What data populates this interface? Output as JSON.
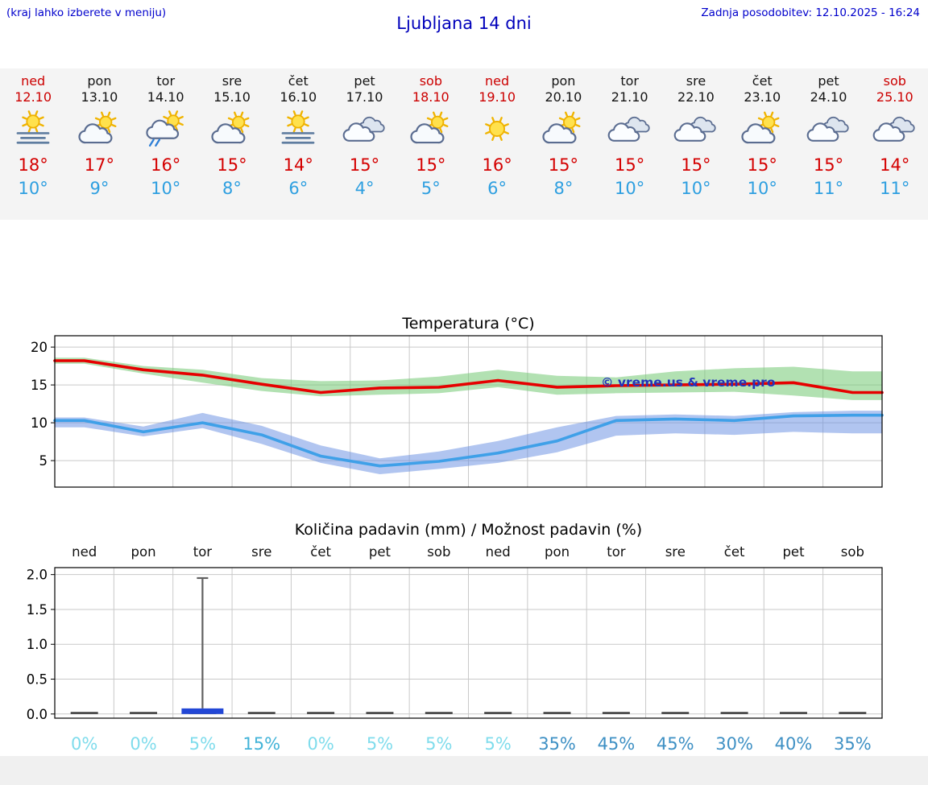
{
  "header": {
    "hint": "(kraj lahko izberete v meniju)",
    "title": "Ljubljana 14 dni",
    "updated": "Zadnja posodobitev: 12.10.2025 - 16:24"
  },
  "colors": {
    "header_text": "#0000cc",
    "title": "#0000bb",
    "high_temp": "#d40000",
    "low_temp": "#2e9fe0",
    "weekend": "#cc0000",
    "strip_background": "#f4f4f4"
  },
  "forecast": {
    "days": [
      {
        "name": "ned",
        "date": "12.10",
        "weekend": true,
        "icon": "sun-fog",
        "high": "18°",
        "low": "10°"
      },
      {
        "name": "pon",
        "date": "13.10",
        "weekend": false,
        "icon": "partly-cloudy",
        "high": "17°",
        "low": "9°"
      },
      {
        "name": "tor",
        "date": "14.10",
        "weekend": false,
        "icon": "partly-cloudy-rain",
        "high": "16°",
        "low": "10°"
      },
      {
        "name": "sre",
        "date": "15.10",
        "weekend": false,
        "icon": "partly-cloudy",
        "high": "15°",
        "low": "8°"
      },
      {
        "name": "čet",
        "date": "16.10",
        "weekend": false,
        "icon": "sun-fog",
        "high": "14°",
        "low": "6°"
      },
      {
        "name": "pet",
        "date": "17.10",
        "weekend": false,
        "icon": "cloudy",
        "high": "15°",
        "low": "4°"
      },
      {
        "name": "sob",
        "date": "18.10",
        "weekend": true,
        "icon": "partly-cloudy",
        "high": "15°",
        "low": "5°"
      },
      {
        "name": "ned",
        "date": "19.10",
        "weekend": true,
        "icon": "sunny",
        "high": "16°",
        "low": "6°"
      },
      {
        "name": "pon",
        "date": "20.10",
        "weekend": false,
        "icon": "partly-cloudy",
        "high": "15°",
        "low": "8°"
      },
      {
        "name": "tor",
        "date": "21.10",
        "weekend": false,
        "icon": "cloudy",
        "high": "15°",
        "low": "10°"
      },
      {
        "name": "sre",
        "date": "22.10",
        "weekend": false,
        "icon": "cloudy",
        "high": "15°",
        "low": "10°"
      },
      {
        "name": "čet",
        "date": "23.10",
        "weekend": false,
        "icon": "partly-cloudy",
        "high": "15°",
        "low": "10°"
      },
      {
        "name": "pet",
        "date": "24.10",
        "weekend": false,
        "icon": "cloudy",
        "high": "15°",
        "low": "11°"
      },
      {
        "name": "sob",
        "date": "25.10",
        "weekend": true,
        "icon": "cloudy",
        "high": "14°",
        "low": "11°"
      }
    ]
  },
  "chart_data": [
    {
      "type": "line",
      "title": "Temperatura (°C)",
      "x_labels": [
        "ned",
        "pon",
        "tor",
        "sre",
        "čet",
        "pet",
        "sob",
        "ned",
        "pon",
        "tor",
        "sre",
        "čet",
        "pet",
        "sob"
      ],
      "ylim": [
        1.5,
        21.5
      ],
      "yticks": [
        5,
        10,
        15,
        20
      ],
      "grid": true,
      "legend": "none",
      "watermark": "© vreme.us & vreme.pro",
      "series": [
        {
          "name": "max-temp",
          "color": "#e60000",
          "values": [
            18.2,
            17.0,
            16.3,
            15.1,
            14.0,
            14.6,
            14.7,
            15.6,
            14.7,
            14.9,
            15.0,
            15.1,
            15.3,
            14.0
          ]
        },
        {
          "name": "min-temp",
          "color": "#3fa0e8",
          "values": [
            10.3,
            8.8,
            10.0,
            8.4,
            5.6,
            4.3,
            4.9,
            6.0,
            7.6,
            10.3,
            10.5,
            10.3,
            10.9,
            11.0
          ]
        }
      ],
      "bands": [
        {
          "name": "max-temp-range",
          "color": "rgba(115,200,115,0.55)",
          "upper": [
            18.6,
            17.5,
            17.0,
            15.9,
            15.5,
            15.6,
            16.1,
            17.0,
            16.2,
            16.0,
            16.8,
            17.2,
            17.4,
            16.8
          ],
          "lower": [
            17.8,
            16.5,
            15.3,
            14.2,
            13.5,
            13.7,
            13.9,
            14.7,
            13.7,
            13.9,
            14.0,
            14.1,
            13.6,
            13.0
          ]
        },
        {
          "name": "min-temp-range",
          "color": "rgba(100,140,225,0.5)",
          "upper": [
            10.7,
            9.5,
            11.3,
            9.6,
            7.0,
            5.3,
            6.2,
            7.6,
            9.4,
            10.9,
            11.1,
            10.9,
            11.4,
            11.6
          ],
          "lower": [
            9.4,
            8.2,
            9.3,
            7.2,
            4.7,
            3.2,
            3.9,
            4.7,
            6.1,
            8.3,
            8.6,
            8.4,
            8.8,
            8.6
          ]
        }
      ]
    },
    {
      "type": "bar",
      "title": "Količina padavin (mm) / Možnost padavin (%)",
      "x_labels": [
        "ned",
        "pon",
        "tor",
        "sre",
        "čet",
        "pet",
        "sob",
        "ned",
        "pon",
        "tor",
        "sre",
        "čet",
        "pet",
        "sob"
      ],
      "ylim": [
        -0.06,
        2.1
      ],
      "yticks": [
        0,
        0.5,
        1,
        1.5,
        2
      ],
      "ytick_labels": [
        "0.0",
        "0.5",
        "1.0",
        "1.5",
        "2.0"
      ],
      "bar_color": "#2247d6",
      "bars": [
        0,
        0,
        0.08,
        0,
        0,
        0,
        0,
        0,
        0,
        0,
        0,
        0,
        0,
        0
      ],
      "whiskers": [
        0,
        0,
        1.95,
        0,
        0,
        0,
        0,
        0,
        0,
        0,
        0,
        0,
        0,
        0
      ],
      "probabilities": [
        "0%",
        "0%",
        "5%",
        "15%",
        "0%",
        "5%",
        "5%",
        "5%",
        "35%",
        "45%",
        "45%",
        "30%",
        "40%",
        "35%"
      ],
      "probability_colors": {
        "low": "#7fdcec",
        "mid": "#42b3d8",
        "high": "#3e90c4"
      }
    }
  ]
}
